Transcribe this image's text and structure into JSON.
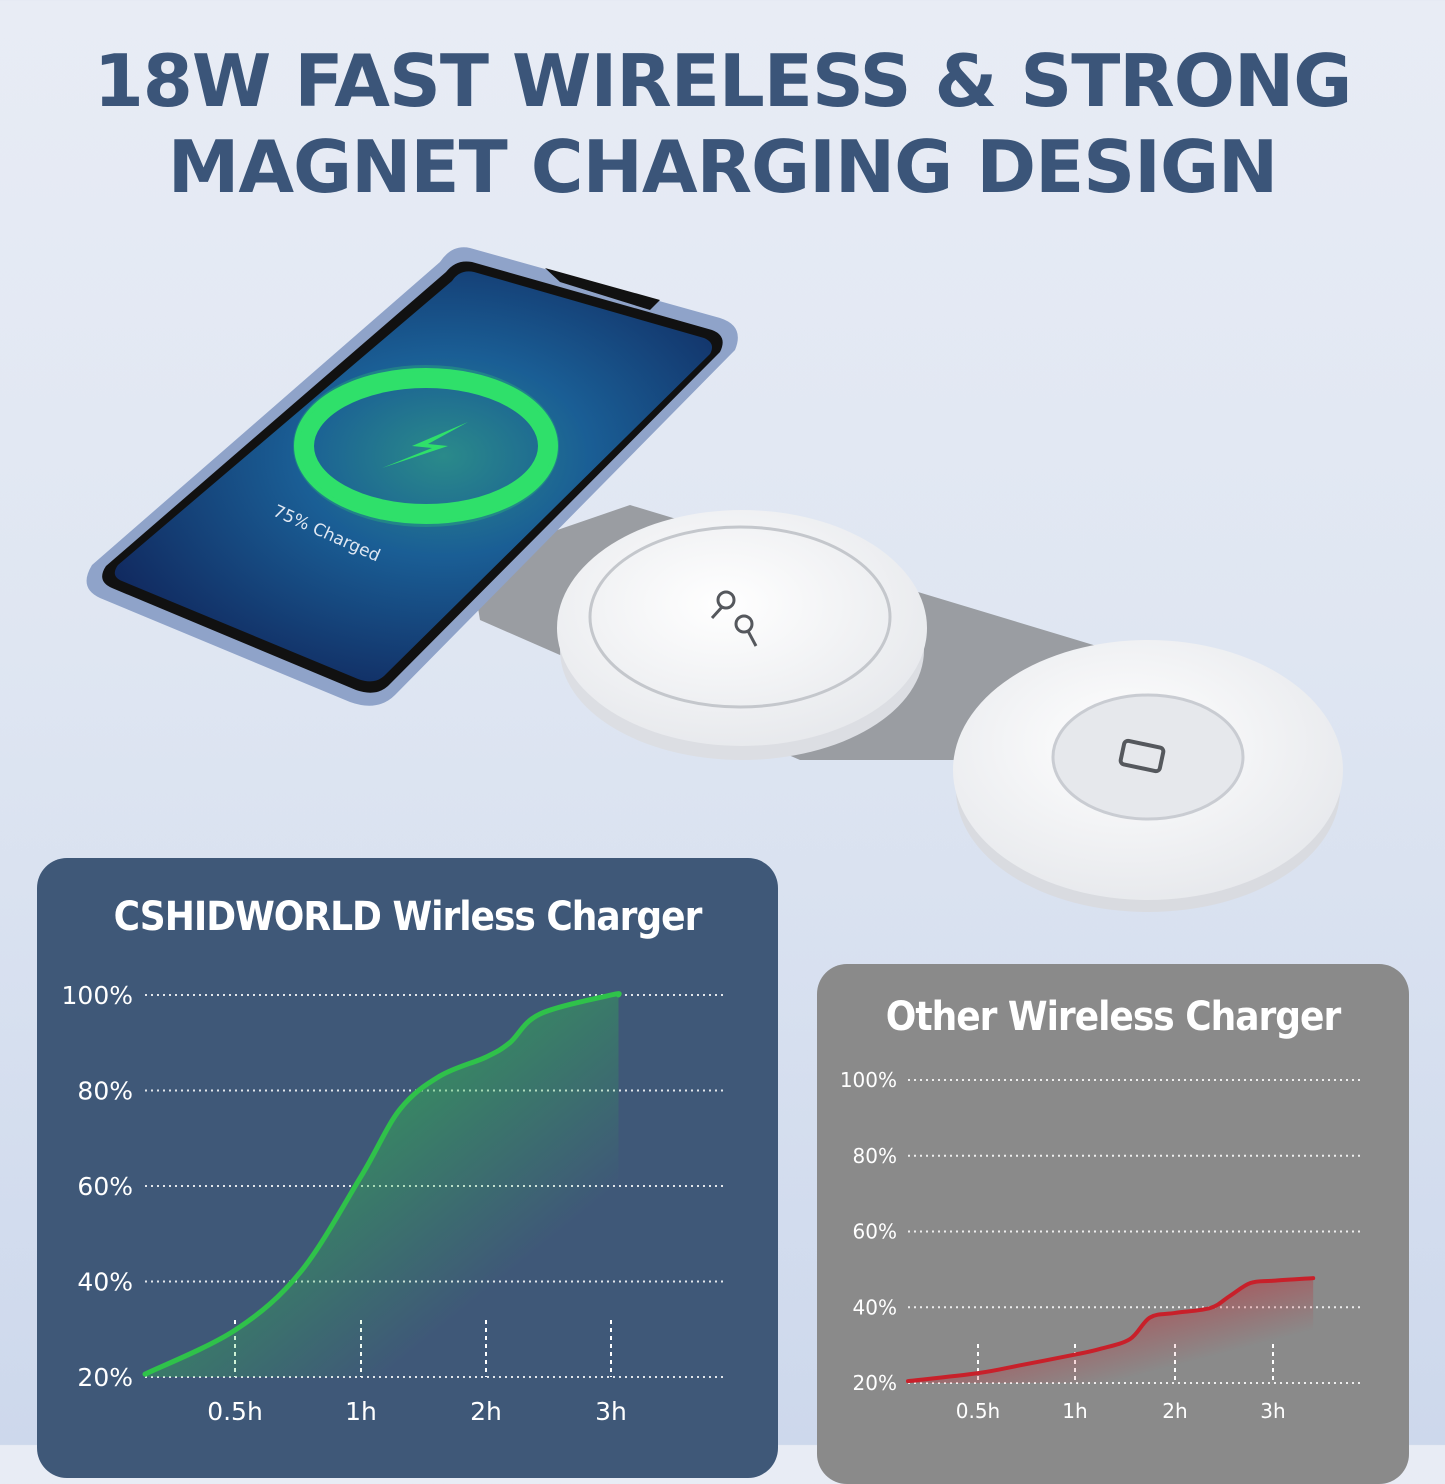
{
  "headline": {
    "line1": "18W FAST WIRELESS & STRONG",
    "line2": "MAGNET CHARGING DESIGN"
  },
  "product": {
    "phone_screen_text": "75% Charged",
    "icons": [
      "lightning-bolt-icon",
      "earbuds-icon",
      "watch-icon"
    ],
    "colors": {
      "ring": "#2fe06a",
      "pad": "#ffffff",
      "strap": "#9a9da2",
      "phone_frame": "#8fa3c9"
    }
  },
  "chart_data": [
    {
      "type": "area",
      "title": "CSHIDWORLD Wirless Charger",
      "x_tick_labels": [
        "0.5h",
        "1h",
        "2h",
        "3h"
      ],
      "x_ticks": [
        0.5,
        1,
        2,
        3
      ],
      "y_tick_labels": [
        "100%",
        "80%",
        "60%",
        "40%",
        "20%"
      ],
      "y_ticks": [
        100,
        80,
        60,
        40,
        20
      ],
      "ylim": [
        20,
        100
      ],
      "grid": true,
      "series": [
        {
          "color": "#2fc24a",
          "x": [
            0,
            0.5,
            0.76,
            1,
            1.31,
            1.63,
            2,
            2.19,
            2.43,
            3,
            3.06
          ],
          "y": [
            20.6,
            29.8,
            42,
            62,
            76,
            83,
            87,
            90,
            96,
            100,
            100
          ]
        }
      ],
      "background": "#3f5878"
    },
    {
      "type": "area",
      "title": "Other Wireless Charger",
      "x_tick_labels": [
        "0.5h",
        "1h",
        "2h",
        "3h"
      ],
      "x_ticks": [
        0.5,
        1,
        2,
        3
      ],
      "y_tick_labels": [
        "100%",
        "80%",
        "60%",
        "40%",
        "20%"
      ],
      "y_ticks": [
        100,
        80,
        60,
        40,
        20
      ],
      "ylim": [
        20,
        100
      ],
      "grid": true,
      "series": [
        {
          "color": "#c8202a",
          "x": [
            0,
            0.5,
            0.72,
            1,
            1.25,
            1.55,
            1.75,
            2,
            2.36,
            2.56,
            2.77,
            3,
            3.41
          ],
          "y": [
            20.5,
            22.6,
            24.7,
            27.5,
            29,
            31.6,
            37.3,
            38.5,
            39.8,
            43,
            46.4,
            47,
            47.7
          ]
        }
      ],
      "background": "#8a8a8a"
    }
  ]
}
